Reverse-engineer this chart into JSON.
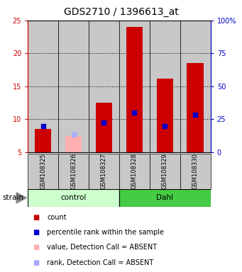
{
  "title": "GDS2710 / 1396613_at",
  "samples": [
    "GSM108325",
    "GSM108326",
    "GSM108327",
    "GSM108328",
    "GSM108329",
    "GSM108330"
  ],
  "red_values": [
    8.6,
    null,
    12.5,
    24.0,
    16.2,
    18.5
  ],
  "pink_values": [
    null,
    7.5,
    null,
    null,
    null,
    null
  ],
  "blue_values": [
    9.0,
    null,
    9.5,
    11.0,
    9.0,
    10.7
  ],
  "light_blue_values": [
    null,
    7.7,
    null,
    null,
    null,
    null
  ],
  "bar_bottom": 5.0,
  "ylim_left": [
    5,
    25
  ],
  "ylim_right": [
    0,
    100
  ],
  "yticks_left": [
    5,
    10,
    15,
    20,
    25
  ],
  "ytick_labels_left": [
    "5",
    "10",
    "15",
    "20",
    "25"
  ],
  "yticks_right_vals": [
    0,
    25,
    50,
    75,
    100
  ],
  "ytick_labels_right": [
    "0",
    "25",
    "50",
    "75",
    "100%"
  ],
  "dotted_lines": [
    10,
    15,
    20
  ],
  "bar_width": 0.55,
  "red_color": "#CC0000",
  "pink_color": "#FFB0B0",
  "blue_color": "#0000CC",
  "light_blue_color": "#AAAAFF",
  "control_bg_light": "#CCFFCC",
  "dahl_bg": "#44CC44",
  "sample_box_bg": "#C8C8C8",
  "title_fontsize": 10,
  "tick_fontsize": 7,
  "sample_fontsize": 6,
  "legend_fontsize": 7,
  "ylabel_left_color": "#CC0000",
  "ylabel_right_color": "#0000CC",
  "n_control": 3,
  "n_dahl": 3
}
